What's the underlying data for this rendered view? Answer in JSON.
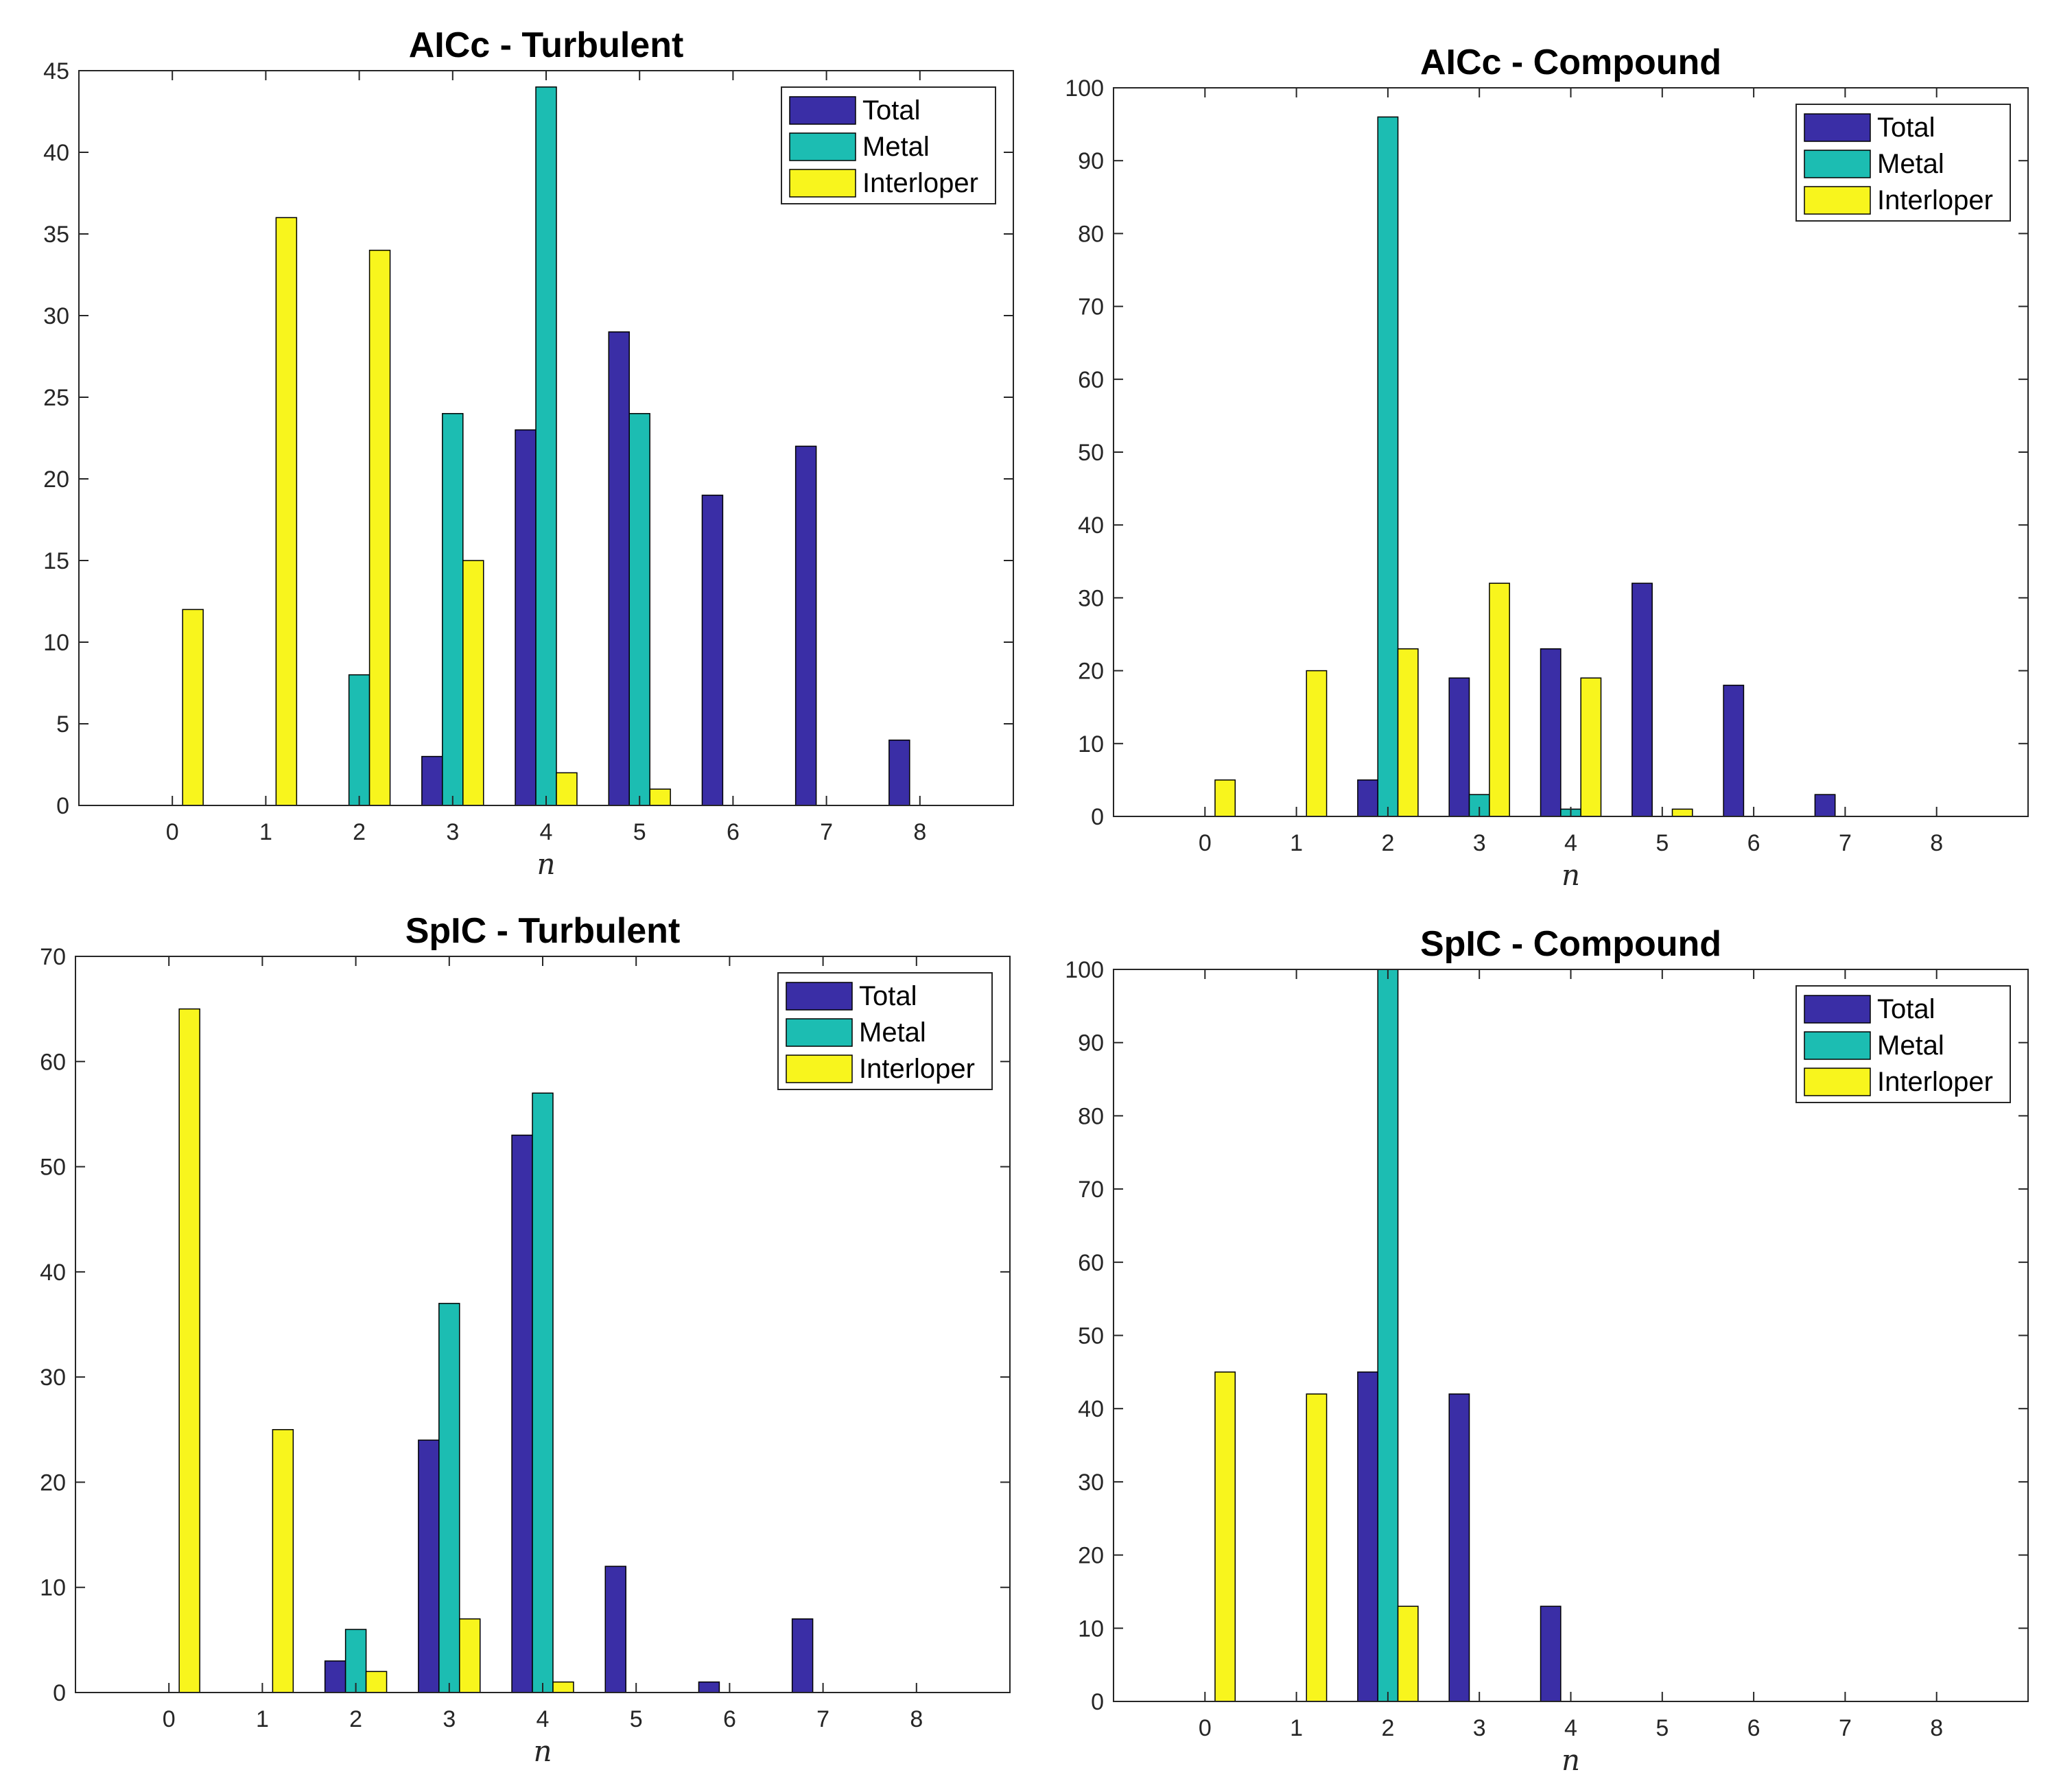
{
  "colors": {
    "total": "#3a2ea6",
    "metal": "#1cbdb2",
    "interloper": "#f8f51d",
    "axis": "#262626",
    "background": "#ffffff"
  },
  "chart_data": [
    {
      "type": "bar",
      "title": "AICc - Turbulent",
      "xlabel": "n",
      "ylabel": "",
      "categories": [
        "0",
        "1",
        "2",
        "3",
        "4",
        "5",
        "6",
        "7",
        "8"
      ],
      "ylim": [
        0,
        45
      ],
      "yticks": [
        "0",
        "5",
        "10",
        "15",
        "20",
        "25",
        "30",
        "35",
        "40",
        "45"
      ],
      "legend_position": "top-right",
      "legend": [
        "Total",
        "Metal",
        "Interloper"
      ],
      "series": [
        {
          "name": "Total",
          "values": [
            0,
            0,
            0,
            3,
            23,
            29,
            19,
            22,
            4
          ]
        },
        {
          "name": "Metal",
          "values": [
            0,
            0,
            8,
            24,
            44,
            24,
            0,
            0,
            0
          ]
        },
        {
          "name": "Interloper",
          "values": [
            12,
            36,
            34,
            15,
            2,
            1,
            0,
            0,
            0
          ]
        }
      ]
    },
    {
      "type": "bar",
      "title": "AICc - Compound",
      "xlabel": "n",
      "ylabel": "",
      "categories": [
        "0",
        "1",
        "2",
        "3",
        "4",
        "5",
        "6",
        "7",
        "8"
      ],
      "ylim": [
        0,
        100
      ],
      "yticks": [
        "0",
        "10",
        "20",
        "30",
        "40",
        "50",
        "60",
        "70",
        "80",
        "90",
        "100"
      ],
      "legend_position": "top-right",
      "legend": [
        "Total",
        "Metal",
        "Interloper"
      ],
      "series": [
        {
          "name": "Total",
          "values": [
            0,
            0,
            5,
            19,
            23,
            32,
            18,
            3,
            0
          ]
        },
        {
          "name": "Metal",
          "values": [
            0,
            0,
            96,
            3,
            1,
            0,
            0,
            0,
            0
          ]
        },
        {
          "name": "Interloper",
          "values": [
            5,
            20,
            23,
            32,
            19,
            1,
            0,
            0,
            0
          ]
        }
      ]
    },
    {
      "type": "bar",
      "title": "SpIC - Turbulent",
      "xlabel": "n",
      "ylabel": "",
      "categories": [
        "0",
        "1",
        "2",
        "3",
        "4",
        "5",
        "6",
        "7",
        "8"
      ],
      "ylim": [
        0,
        70
      ],
      "yticks": [
        "0",
        "10",
        "20",
        "30",
        "40",
        "50",
        "60",
        "70"
      ],
      "legend_position": "top-right",
      "legend": [
        "Total",
        "Metal",
        "Interloper"
      ],
      "series": [
        {
          "name": "Total",
          "values": [
            0,
            0,
            3,
            24,
            53,
            12,
            1,
            7,
            0
          ]
        },
        {
          "name": "Metal",
          "values": [
            0,
            0,
            6,
            37,
            57,
            0,
            0,
            0,
            0
          ]
        },
        {
          "name": "Interloper",
          "values": [
            65,
            25,
            2,
            7,
            1,
            0,
            0,
            0,
            0
          ]
        }
      ]
    },
    {
      "type": "bar",
      "title": "SpIC - Compound",
      "xlabel": "n",
      "ylabel": "",
      "categories": [
        "0",
        "1",
        "2",
        "3",
        "4",
        "5",
        "6",
        "7",
        "8"
      ],
      "ylim": [
        0,
        100
      ],
      "yticks": [
        "0",
        "10",
        "20",
        "30",
        "40",
        "50",
        "60",
        "70",
        "80",
        "90",
        "100"
      ],
      "legend_position": "top-right",
      "legend": [
        "Total",
        "Metal",
        "Interloper"
      ],
      "series": [
        {
          "name": "Total",
          "values": [
            0,
            0,
            45,
            42,
            13,
            0,
            0,
            0,
            0
          ]
        },
        {
          "name": "Metal",
          "values": [
            0,
            0,
            100,
            0,
            0,
            0,
            0,
            0,
            0
          ]
        },
        {
          "name": "Interloper",
          "values": [
            45,
            42,
            13,
            0,
            0,
            0,
            0,
            0,
            0
          ]
        }
      ]
    }
  ]
}
